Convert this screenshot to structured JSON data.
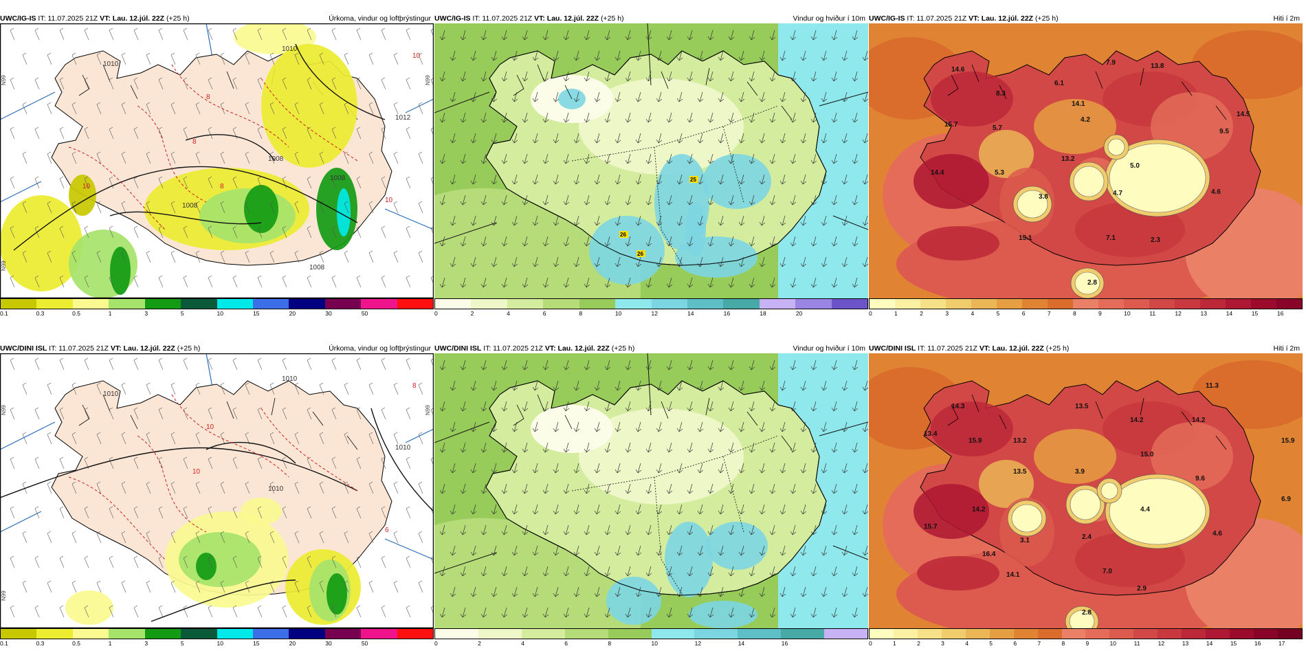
{
  "panels": [
    {
      "model": "UWC/IG-IS",
      "it": "IT: 11.07.2025 21Z",
      "vt": "VT: Lau. 12.júl. 22Z",
      "lead": "(+25 h)",
      "title": "Úrkoma, vindur og loftþrýstingur",
      "ticks": [
        "0.1",
        "0.3",
        "0.5",
        "1",
        "3",
        "5",
        "10",
        "15",
        "20",
        "30",
        "50"
      ],
      "colors": [
        "#c8c800",
        "#ecec30",
        "#fafa90",
        "#a6e36a",
        "#139b13",
        "#0a5a3a",
        "#00e8e8",
        "#3c6ee8",
        "#000080",
        "#780050",
        "#f0148c",
        "#ff1010"
      ],
      "lat_labels": [
        "N99",
        "N99",
        "N99"
      ],
      "isobars": [
        "1010",
        "1010",
        "1012",
        "1008",
        "1008",
        "1008",
        "1008"
      ],
      "precip_labels": [
        "10",
        "10",
        "8",
        "8",
        "8",
        "10"
      ]
    },
    {
      "model": "UWC/IG-IS",
      "it": "IT: 11.07.2025 21Z",
      "vt": "VT: Lau. 12.júl. 22Z",
      "lead": "(+25 h)",
      "title": "Vindur og hviður í 10m",
      "ticks": [
        "0",
        "2",
        "4",
        "6",
        "8",
        "10",
        "12",
        "14",
        "16",
        "18",
        "20"
      ],
      "colors": [
        "#fcfde8",
        "#eef7c8",
        "#d4ec9e",
        "#b6dc7a",
        "#98cc5a",
        "#8ee8ec",
        "#7cd6e2",
        "#5ec0c6",
        "#48aaa6",
        "#c6b2f4",
        "#9a84e4",
        "#6c54c8"
      ],
      "wind_labels": [
        "25",
        "26",
        "26"
      ]
    },
    {
      "model": "UWC/IG-IS",
      "it": "IT: 11.07.2025 21Z",
      "vt": "VT: Lau. 12.júl. 22Z",
      "lead": "(+25 h)",
      "title": "Hiti í 2m",
      "ticks": [
        "0",
        "1",
        "2",
        "3",
        "4",
        "5",
        "6",
        "7",
        "8",
        "9",
        "10",
        "11",
        "12",
        "13",
        "14",
        "15",
        "16"
      ],
      "colors": [
        "#fffcc0",
        "#fcf0a2",
        "#f6e088",
        "#f0cc6c",
        "#ebb656",
        "#e69e42",
        "#e08434",
        "#da6c2c",
        "#ea8066",
        "#e46c58",
        "#dc5a4e",
        "#d24846",
        "#c8383e",
        "#bc2838",
        "#ae1832",
        "#9c0a2c",
        "#880428"
      ],
      "temps": [
        "14.6",
        "8.3",
        "6.1",
        "7.9",
        "13.8",
        "14.1",
        "4.2",
        "15.7",
        "5.7",
        "9.5",
        "14.5",
        "13.2",
        "14.4",
        "5.3",
        "5.0",
        "3.8",
        "4.7",
        "4.6",
        "15.1",
        "7.1",
        "2.3",
        "2.8"
      ]
    },
    {
      "model": "UWC/DINI ISL",
      "it": "IT: 11.07.2025 21Z",
      "vt": "VT: Lau. 12.júl. 22Z",
      "lead": "(+25 h)",
      "title": "Úrkoma, vindur og loftþrýstingur",
      "ticks": [
        "0.1",
        "0.3",
        "0.5",
        "1",
        "3",
        "5",
        "10",
        "15",
        "20",
        "30",
        "50"
      ],
      "colors": [
        "#c8c800",
        "#ecec30",
        "#fafa90",
        "#a6e36a",
        "#139b13",
        "#0a5a3a",
        "#00e8e8",
        "#3c6ee8",
        "#000080",
        "#780050",
        "#f0148c",
        "#ff1010"
      ],
      "lat_labels": [
        "N99",
        "N99",
        "N99"
      ],
      "isobars": [
        "1010",
        "1010",
        "1010",
        "1010"
      ],
      "precip_labels": [
        "8",
        "6",
        "10",
        "10"
      ]
    },
    {
      "model": "UWC/DINI ISL",
      "it": "IT: 11.07.2025 21Z",
      "vt": "VT: Lau. 12.júl. 22Z",
      "lead": "(+25 h)",
      "title": "Vindur og hviður í 10m",
      "ticks": [
        "0",
        "2",
        "4",
        "6",
        "8",
        "10",
        "12",
        "14",
        "16"
      ],
      "colors": [
        "#fcfde8",
        "#eef7c8",
        "#d4ec9e",
        "#b6dc7a",
        "#98cc5a",
        "#8ee8ec",
        "#7cd6e2",
        "#5ec0c6",
        "#48aaa6",
        "#c6b2f4"
      ]
    },
    {
      "model": "UWC/DINI ISL",
      "it": "IT: 11.07.2025 21Z",
      "vt": "VT: Lau. 12.júl. 22Z",
      "lead": "(+25 h)",
      "title": "Hiti í 2m",
      "ticks": [
        "0",
        "1",
        "2",
        "3",
        "4",
        "5",
        "6",
        "7",
        "8",
        "9",
        "10",
        "11",
        "12",
        "13",
        "14",
        "15",
        "16",
        "17"
      ],
      "colors": [
        "#fffcc0",
        "#fcf0a2",
        "#f6e088",
        "#f0cc6c",
        "#ebb656",
        "#e69e42",
        "#e08434",
        "#da6c2c",
        "#ea8066",
        "#e46c58",
        "#dc5a4e",
        "#d24846",
        "#c8383e",
        "#bc2838",
        "#ae1832",
        "#9c0a2c",
        "#880428",
        "#740022"
      ],
      "temps": [
        "11.3",
        "14.3",
        "13.5",
        "14.2",
        "14.2",
        "13.4",
        "15.9",
        "13.2",
        "15.0",
        "15.9",
        "13.5",
        "3.9",
        "9.6",
        "6.9",
        "4.4",
        "14.2",
        "15.7",
        "3.1",
        "2.4",
        "4.6",
        "16.4",
        "14.1",
        "7.0",
        "2.9",
        "2.8"
      ]
    }
  ]
}
